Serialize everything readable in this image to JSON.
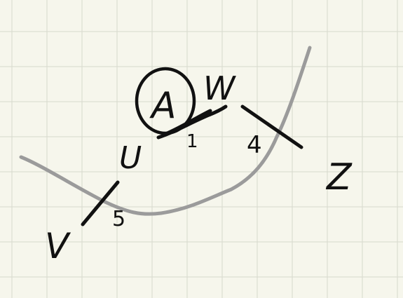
{
  "diagram": {
    "paper": {
      "background": "#f6f6ec",
      "grid_color": "#d7d9cd"
    },
    "curve_color": "#9b9b9b",
    "ink_color": "#111111",
    "circled_label": "A",
    "nodes": {
      "v": "V",
      "u": "U",
      "w": "W",
      "z": "Z"
    },
    "weights": {
      "v_u": "5",
      "u_w": "1",
      "w_z": "4"
    }
  }
}
